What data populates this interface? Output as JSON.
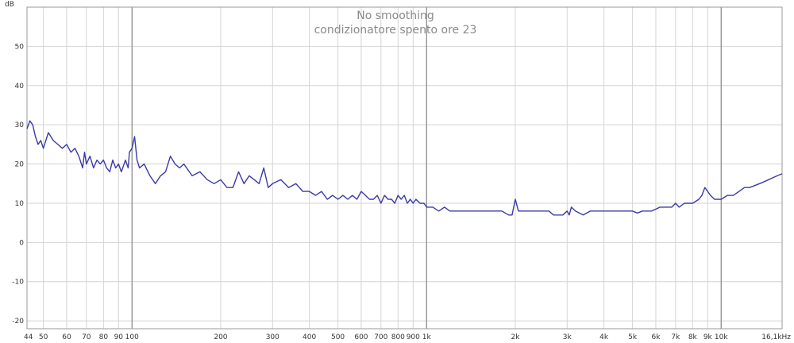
{
  "chart_data": {
    "type": "line",
    "title": "No smoothing",
    "subtitle": "condizionatore spento ore 23",
    "ylabel": "dB",
    "xlabel": "",
    "xscale": "log",
    "xlim": [
      44,
      16100
    ],
    "ylim": [
      -22,
      60
    ],
    "grid": true,
    "line_color": "#3a3aa8",
    "x_ticks": [
      {
        "v": 44,
        "label": "44"
      },
      {
        "v": 50,
        "label": "50"
      },
      {
        "v": 60,
        "label": "60"
      },
      {
        "v": 70,
        "label": "70"
      },
      {
        "v": 80,
        "label": "80"
      },
      {
        "v": 90,
        "label": "90"
      },
      {
        "v": 100,
        "label": "100"
      },
      {
        "v": 200,
        "label": "200"
      },
      {
        "v": 300,
        "label": "300"
      },
      {
        "v": 400,
        "label": "400"
      },
      {
        "v": 500,
        "label": "500"
      },
      {
        "v": 600,
        "label": "600"
      },
      {
        "v": 700,
        "label": "700"
      },
      {
        "v": 800,
        "label": "800"
      },
      {
        "v": 900,
        "label": "900"
      },
      {
        "v": 1000,
        "label": "1k"
      },
      {
        "v": 2000,
        "label": "2k"
      },
      {
        "v": 3000,
        "label": "3k"
      },
      {
        "v": 4000,
        "label": "4k"
      },
      {
        "v": 5000,
        "label": "5k"
      },
      {
        "v": 6000,
        "label": "6k"
      },
      {
        "v": 7000,
        "label": "7k"
      },
      {
        "v": 8000,
        "label": "8k"
      },
      {
        "v": 9000,
        "label": "9k"
      },
      {
        "v": 10000,
        "label": "10k"
      },
      {
        "v": 16100,
        "label": "16,1kHz"
      }
    ],
    "x_major": [
      100,
      1000,
      10000
    ],
    "y_ticks": [
      {
        "v": 50,
        "label": "50"
      },
      {
        "v": 40,
        "label": "40"
      },
      {
        "v": 30,
        "label": "30"
      },
      {
        "v": 20,
        "label": "20"
      },
      {
        "v": 10,
        "label": "10"
      },
      {
        "v": 0,
        "label": "0"
      },
      {
        "v": -10,
        "label": "-10"
      },
      {
        "v": -20,
        "label": "-20"
      }
    ],
    "series": [
      {
        "x": [
          44,
          45,
          46,
          47,
          48,
          49,
          50,
          52,
          54,
          56,
          58,
          60,
          62,
          64,
          66,
          68,
          69,
          70,
          72,
          74,
          76,
          78,
          80,
          82,
          84,
          86,
          88,
          90,
          92,
          95,
          97,
          98,
          100,
          102,
          104,
          106,
          110,
          115,
          120,
          125,
          130,
          135,
          140,
          145,
          150,
          160,
          170,
          180,
          190,
          200,
          210,
          220,
          230,
          240,
          250,
          260,
          270,
          280,
          290,
          300,
          320,
          340,
          360,
          380,
          400,
          420,
          440,
          460,
          480,
          500,
          520,
          540,
          560,
          580,
          600,
          620,
          640,
          660,
          680,
          700,
          720,
          740,
          760,
          780,
          800,
          820,
          840,
          860,
          880,
          900,
          920,
          950,
          980,
          1000,
          1050,
          1100,
          1150,
          1200,
          1300,
          1400,
          1500,
          1600,
          1700,
          1800,
          1900,
          1950,
          2000,
          2050,
          2100,
          2200,
          2300,
          2400,
          2500,
          2600,
          2700,
          2800,
          2900,
          3000,
          3050,
          3100,
          3200,
          3400,
          3600,
          3800,
          4000,
          4100,
          4200,
          4400,
          4600,
          4800,
          5000,
          5200,
          5400,
          5600,
          5800,
          6000,
          6200,
          6500,
          6800,
          7000,
          7200,
          7500,
          7800,
          8000,
          8200,
          8400,
          8600,
          8800,
          9000,
          9200,
          9500,
          10000,
          10500,
          11000,
          11500,
          12000,
          12500,
          13000,
          13500,
          14000,
          14500,
          15000,
          15500,
          16100
        ],
        "y": [
          29,
          31,
          30,
          27,
          25,
          26,
          24,
          28,
          26,
          25,
          24,
          25,
          23,
          24,
          22,
          19,
          23,
          20,
          22,
          19,
          21,
          20,
          21,
          19,
          18,
          21,
          19,
          20,
          18,
          21,
          19,
          23,
          24,
          27,
          21,
          19,
          20,
          17,
          15,
          17,
          18,
          22,
          20,
          19,
          20,
          17,
          18,
          16,
          15,
          16,
          14,
          14,
          18,
          15,
          17,
          16,
          15,
          19,
          14,
          15,
          16,
          14,
          15,
          13,
          13,
          12,
          13,
          11,
          12,
          11,
          12,
          11,
          12,
          11,
          13,
          12,
          11,
          11,
          12,
          10,
          12,
          11,
          11,
          10,
          12,
          11,
          12,
          10,
          11,
          10,
          11,
          10,
          10,
          9,
          9,
          8,
          9,
          8,
          8,
          8,
          8,
          8,
          8,
          8,
          7,
          7,
          11,
          8,
          8,
          8,
          8,
          8,
          8,
          8,
          7,
          7,
          7,
          8,
          7,
          9,
          8,
          7,
          8,
          8,
          8,
          8,
          8,
          8,
          8,
          8,
          8,
          7.5,
          8,
          8,
          8,
          8.5,
          9,
          9,
          9,
          10,
          9,
          10,
          10,
          10,
          10.5,
          11,
          12,
          14,
          13,
          12,
          11,
          11,
          12,
          12,
          13,
          14,
          14,
          14.5,
          15,
          15.5,
          16,
          16.5,
          17,
          17.5
        ]
      }
    ]
  }
}
